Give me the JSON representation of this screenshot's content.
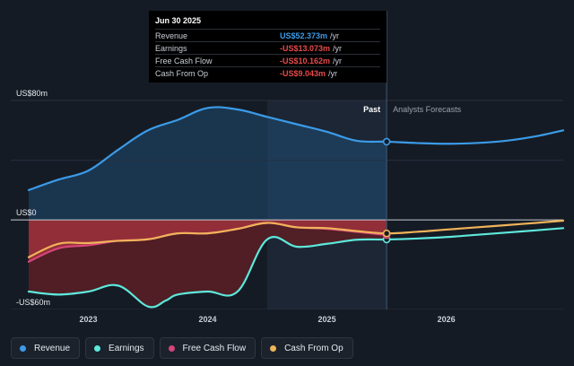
{
  "tooltip": {
    "date": "Jun 30 2025",
    "rows": [
      {
        "label": "Revenue",
        "value": "US$52.373m",
        "unit": "/yr",
        "color": "#3b9be8"
      },
      {
        "label": "Earnings",
        "value": "-US$13.073m",
        "unit": "/yr",
        "color": "#e84a4a"
      },
      {
        "label": "Free Cash Flow",
        "value": "-US$10.162m",
        "unit": "/yr",
        "color": "#e84a4a"
      },
      {
        "label": "Cash From Op",
        "value": "-US$9.043m",
        "unit": "/yr",
        "color": "#e84a4a"
      }
    ]
  },
  "legend": [
    {
      "label": "Revenue",
      "color": "#3b9be8"
    },
    {
      "label": "Earnings",
      "color": "#5ee8dc"
    },
    {
      "label": "Free Cash Flow",
      "color": "#d6457a"
    },
    {
      "label": "Cash From Op",
      "color": "#f0b35a"
    }
  ],
  "chart_data": {
    "type": "line",
    "y_tick_labels": [
      "US$80m",
      "US$0",
      "-US$60m"
    ],
    "x_tick_labels": [
      "2023",
      "2024",
      "2025",
      "2026"
    ],
    "ylim": [
      -60,
      80
    ],
    "xlim": [
      2022.35,
      2026.98
    ],
    "past_label": "Past",
    "forecast_label": "Analysts Forecasts",
    "past_region_start": 2024.5,
    "divider_x": 2025.5,
    "grid": true,
    "series": [
      {
        "name": "Revenue",
        "color": "#3b9be8",
        "x": [
          2022.5,
          2022.75,
          2023.0,
          2023.25,
          2023.5,
          2023.75,
          2024.0,
          2024.25,
          2024.5,
          2024.75,
          2025.0,
          2025.25,
          2025.5,
          2025.75,
          2026.0,
          2026.25,
          2026.5,
          2026.75,
          2026.98
        ],
        "y": [
          20,
          27,
          33,
          47,
          60,
          67,
          75,
          74,
          69,
          64,
          59,
          53,
          52.4,
          51.5,
          51.0,
          51.5,
          53.0,
          56.0,
          60.0
        ]
      },
      {
        "name": "Earnings",
        "color": "#5ee8dc",
        "x": [
          2022.5,
          2022.75,
          2023.0,
          2023.25,
          2023.5,
          2023.65,
          2023.75,
          2024.0,
          2024.25,
          2024.5,
          2024.75,
          2025.0,
          2025.25,
          2025.5,
          2025.75,
          2026.0,
          2026.25,
          2026.5,
          2026.75,
          2026.98
        ],
        "y": [
          -48,
          -50,
          -48,
          -44,
          -58,
          -54,
          -50,
          -48,
          -48,
          -13,
          -18,
          -16,
          -13.3,
          -13.1,
          -12.5,
          -11.5,
          -10.0,
          -8.5,
          -7.0,
          -5.5
        ]
      },
      {
        "name": "Free Cash Flow",
        "color": "#d6457a",
        "x": [
          2022.5,
          2022.75,
          2023.0,
          2023.25,
          2023.5,
          2023.75,
          2024.0,
          2024.25,
          2024.5,
          2024.75,
          2025.0,
          2025.25,
          2025.5
        ],
        "y": [
          -28,
          -19,
          -17,
          -14,
          -13,
          -9,
          -9,
          -6,
          -2,
          -5,
          -6,
          -8,
          -10.16
        ]
      },
      {
        "name": "Cash From Op",
        "color": "#f0b35a",
        "x": [
          2022.5,
          2022.75,
          2023.0,
          2023.25,
          2023.5,
          2023.75,
          2024.0,
          2024.25,
          2024.5,
          2024.75,
          2025.0,
          2025.25,
          2025.5,
          2025.75,
          2026.0,
          2026.25,
          2026.5,
          2026.75,
          2026.98
        ],
        "y": [
          -25,
          -16,
          -15.5,
          -14,
          -13,
          -9,
          -9,
          -6,
          -2,
          -5,
          -5.5,
          -7.5,
          -9.04,
          -8.0,
          -6.5,
          -5.0,
          -3.5,
          -2.0,
          -0.5
        ]
      }
    ]
  }
}
